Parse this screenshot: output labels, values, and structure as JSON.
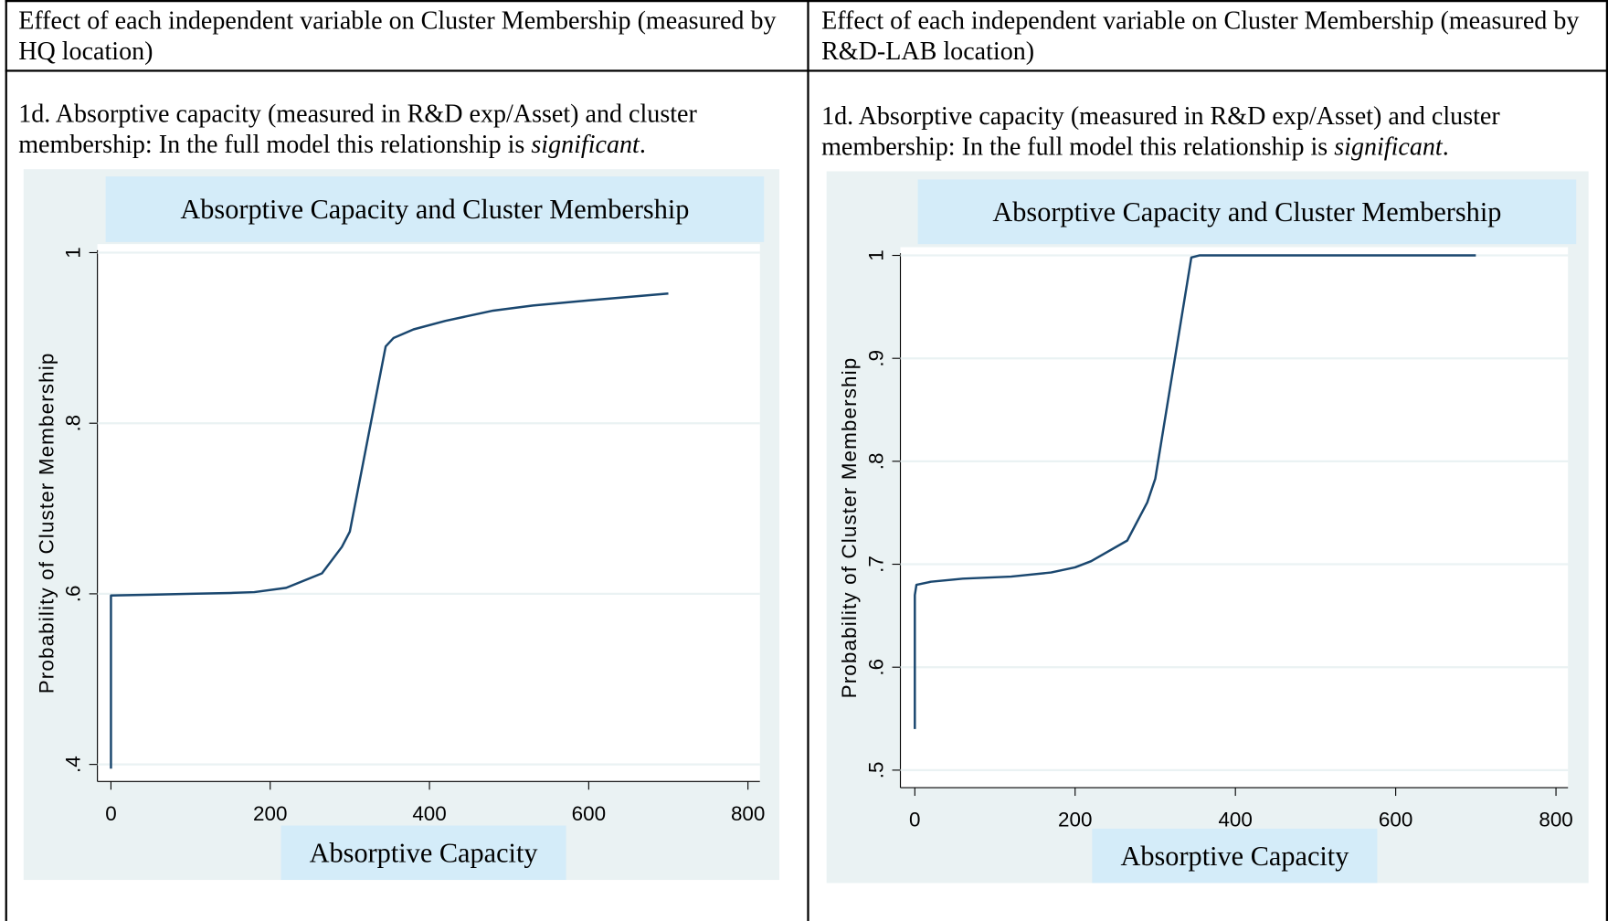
{
  "table": {
    "headers": [
      "Effect of each independent variable on Cluster Membership (measured by HQ location)",
      "Effect of each independent variable on Cluster Membership (measured by R&D-LAB location)"
    ],
    "cells": [
      {
        "parts": [
          "1d. Absorptive capacity (measured in R&D exp/Asset) and cluster membership:  In the full model this relationship is ",
          "significant",
          "."
        ]
      },
      {
        "parts": [
          "1d. Absorptive capacity (measured in R&D exp/Asset) and cluster membership:  In the full model this relationship is ",
          "significant",
          "."
        ]
      }
    ]
  },
  "chart_data": [
    {
      "type": "line",
      "title": "Absorptive Capacity and Cluster Membership",
      "xlabel": "Absorptive Capacity",
      "ylabel": "Probability of Cluster Membership",
      "color": "#1a476f",
      "grid": true,
      "x": [
        0,
        0,
        50,
        100,
        150,
        180,
        220,
        265,
        290,
        300,
        345,
        355,
        380,
        420,
        480,
        530,
        600,
        700
      ],
      "values": [
        0.395,
        0.598,
        0.599,
        0.6,
        0.601,
        0.602,
        0.607,
        0.624,
        0.655,
        0.673,
        0.89,
        0.9,
        0.91,
        0.92,
        0.932,
        0.938,
        0.944,
        0.952
      ],
      "xlim": [
        -17,
        815
      ],
      "xticks": [
        0,
        200,
        400,
        600,
        800
      ],
      "ylim": [
        0.38,
        1.01
      ],
      "yticks": [
        {
          "value": 0.4,
          "label": ".4"
        },
        {
          "value": 0.6,
          "label": ".6"
        },
        {
          "value": 0.8,
          "label": ".8"
        },
        1
      ]
    },
    {
      "type": "line",
      "title": "Absorptive Capacity and Cluster Membership",
      "xlabel": "Absorptive Capacity",
      "ylabel": "Probability of Cluster Membership",
      "color": "#1a476f",
      "grid": true,
      "x": [
        0,
        0,
        2,
        20,
        60,
        120,
        170,
        200,
        220,
        265,
        290,
        300,
        345,
        355,
        700
      ],
      "values": [
        0.54,
        0.67,
        0.68,
        0.683,
        0.686,
        0.688,
        0.692,
        0.697,
        0.703,
        0.723,
        0.76,
        0.783,
        0.998,
        1.0,
        1.0
      ],
      "xlim": [
        -18,
        815
      ],
      "xticks": [
        0,
        200,
        400,
        600,
        800
      ],
      "ylim": [
        0.483,
        1.008
      ],
      "yticks": [
        {
          "value": 0.5,
          "label": ".5"
        },
        {
          "value": 0.6,
          "label": ".6"
        },
        {
          "value": 0.7,
          "label": ".7"
        },
        {
          "value": 0.8,
          "label": ".8"
        },
        {
          "value": 0.9,
          "label": ".9"
        },
        1
      ]
    }
  ]
}
